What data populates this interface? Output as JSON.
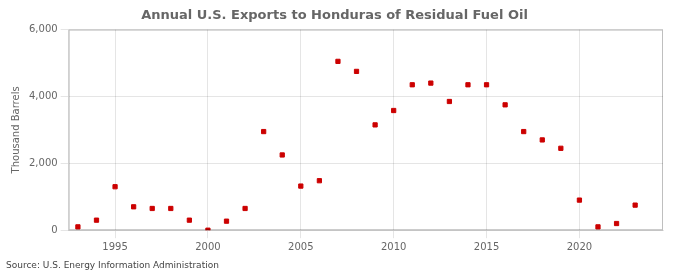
{
  "chart_data": {
    "type": "scatter",
    "title": "Annual U.S. Exports to Honduras of Residual Fuel Oil",
    "ylabel": "Thousand Barrels",
    "annotation": "Source: U.S. Energy Information Administration",
    "x": [
      1993,
      1994,
      1995,
      1996,
      1997,
      1998,
      1999,
      2000,
      2001,
      2002,
      2003,
      2004,
      2005,
      2006,
      2007,
      2008,
      2009,
      2010,
      2011,
      2012,
      2013,
      2014,
      2015,
      2016,
      2017,
      2018,
      2019,
      2020,
      2021,
      2022,
      2023
    ],
    "values": [
      100,
      300,
      1300,
      700,
      650,
      650,
      300,
      0,
      270,
      650,
      2950,
      2250,
      1320,
      1480,
      5050,
      4750,
      3150,
      3580,
      4350,
      4400,
      3850,
      4350,
      4350,
      3750,
      2950,
      2700,
      2450,
      900,
      100,
      200,
      750
    ],
    "color": "#cc0000",
    "marker": "square",
    "xlim": [
      1992.5,
      2024.5
    ],
    "xticks": [
      1995,
      2000,
      2005,
      2010,
      2015,
      2020
    ],
    "ylim": [
      0,
      6000
    ],
    "yticks": [
      0,
      {
        "value": 2000,
        "label": "2,000"
      },
      {
        "value": 4000,
        "label": "4,000"
      },
      {
        "value": 6000,
        "label": "6,000"
      }
    ],
    "grid": true
  }
}
